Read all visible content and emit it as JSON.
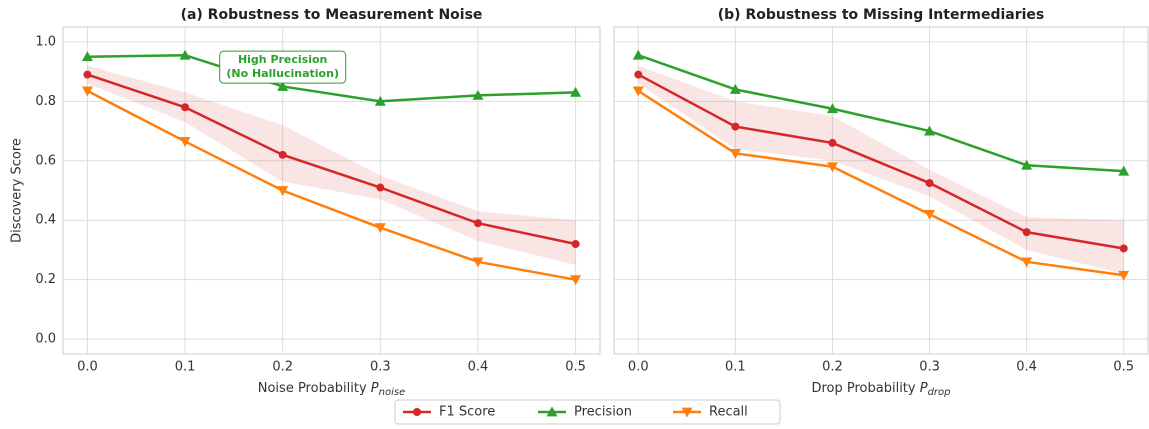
{
  "chart_data": [
    {
      "type": "line",
      "title": "(a) Robustness to Measurement Noise",
      "xlabel": "Noise Probability ",
      "xlabel_var": "P",
      "xlabel_sub": "noise",
      "ylabel": "Discovery Score",
      "x": [
        0,
        0.1,
        0.2,
        0.3,
        0.4,
        0.5
      ],
      "series": [
        {
          "name": "F1 Score",
          "color": "#d62728",
          "marker": "circle",
          "values": [
            0.89,
            0.78,
            0.62,
            0.51,
            0.39,
            0.32
          ]
        },
        {
          "name": "Precision",
          "color": "#2ca02c",
          "marker": "triangle-up",
          "values": [
            0.95,
            0.955,
            0.85,
            0.8,
            0.82,
            0.83
          ]
        },
        {
          "name": "Recall",
          "color": "#ff7f0e",
          "marker": "triangle-down",
          "values": [
            0.835,
            0.665,
            0.5,
            0.375,
            0.26,
            0.2
          ]
        }
      ],
      "band": {
        "color": "#d62728",
        "lower": [
          0.86,
          0.73,
          0.53,
          0.47,
          0.33,
          0.25
        ],
        "upper": [
          0.92,
          0.83,
          0.72,
          0.55,
          0.43,
          0.4
        ]
      },
      "annotation": [
        "High Precision",
        "(No Hallucination)"
      ],
      "annotation_at": [
        0.2,
        0.915
      ],
      "xlim": [
        -0.025,
        0.525
      ],
      "ylim": [
        -0.05,
        1.05
      ],
      "xticks": [
        {
          "value": 0,
          "label": "0.0"
        },
        0.1,
        0.2,
        0.3,
        0.4,
        0.5
      ],
      "yticks": [
        {
          "value": 0,
          "label": "0.0"
        },
        0.2,
        0.4,
        0.6,
        0.8,
        {
          "value": 1,
          "label": "1.0"
        }
      ],
      "grid": true
    },
    {
      "type": "line",
      "title": "(b) Robustness to Missing Intermediaries",
      "xlabel": "Drop Probability ",
      "xlabel_var": "P",
      "xlabel_sub": "drop",
      "x": [
        0,
        0.1,
        0.2,
        0.3,
        0.4,
        0.5
      ],
      "series": [
        {
          "name": "F1 Score",
          "color": "#d62728",
          "marker": "circle",
          "values": [
            0.89,
            0.715,
            0.66,
            0.525,
            0.36,
            0.305
          ]
        },
        {
          "name": "Precision",
          "color": "#2ca02c",
          "marker": "triangle-up",
          "values": [
            0.955,
            0.84,
            0.775,
            0.7,
            0.585,
            0.565
          ]
        },
        {
          "name": "Recall",
          "color": "#ff7f0e",
          "marker": "triangle-down",
          "values": [
            0.835,
            0.625,
            0.58,
            0.42,
            0.26,
            0.215
          ]
        }
      ],
      "band": {
        "color": "#d62728",
        "lower": [
          0.86,
          0.64,
          0.6,
          0.48,
          0.3,
          0.22
        ],
        "upper": [
          0.92,
          0.8,
          0.75,
          0.57,
          0.41,
          0.4
        ]
      },
      "xlim": [
        -0.025,
        0.525
      ],
      "ylim": [
        -0.05,
        1.05
      ],
      "xticks": [
        {
          "value": 0,
          "label": "0.0"
        },
        0.1,
        0.2,
        0.3,
        0.4,
        0.5
      ],
      "yticks": [
        {
          "value": 0,
          "label": "0.0"
        },
        0.2,
        0.4,
        0.6,
        0.8,
        {
          "value": 1,
          "label": "1.0"
        }
      ],
      "grid": true
    }
  ]
}
